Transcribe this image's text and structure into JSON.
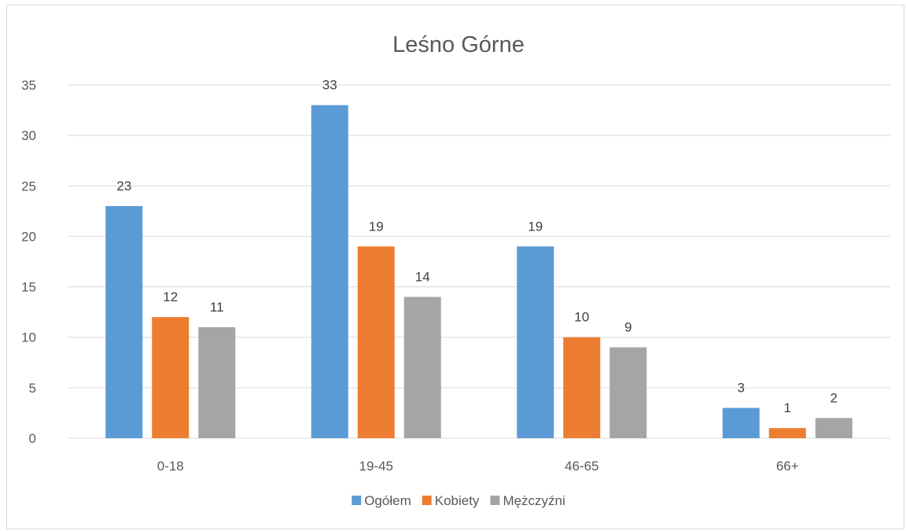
{
  "chart_data": {
    "type": "bar",
    "title": "Leśno Górne",
    "xlabel": "",
    "ylabel": "",
    "categories": [
      "0-18",
      "19-45",
      "46-65",
      "66+"
    ],
    "series": [
      {
        "name": "Ogółem",
        "values": [
          23,
          33,
          19,
          3
        ],
        "color": "#5b9bd5"
      },
      {
        "name": "Kobiety",
        "values": [
          12,
          19,
          10,
          1
        ],
        "color": "#ed7d31"
      },
      {
        "name": "Mężczyźni",
        "values": [
          11,
          14,
          9,
          2
        ],
        "color": "#a5a5a5"
      }
    ],
    "ylim": [
      0,
      35
    ],
    "yticks": [
      0,
      5,
      10,
      15,
      20,
      25,
      30,
      35
    ],
    "grid": true,
    "legend_position": "bottom",
    "data_labels": true
  }
}
